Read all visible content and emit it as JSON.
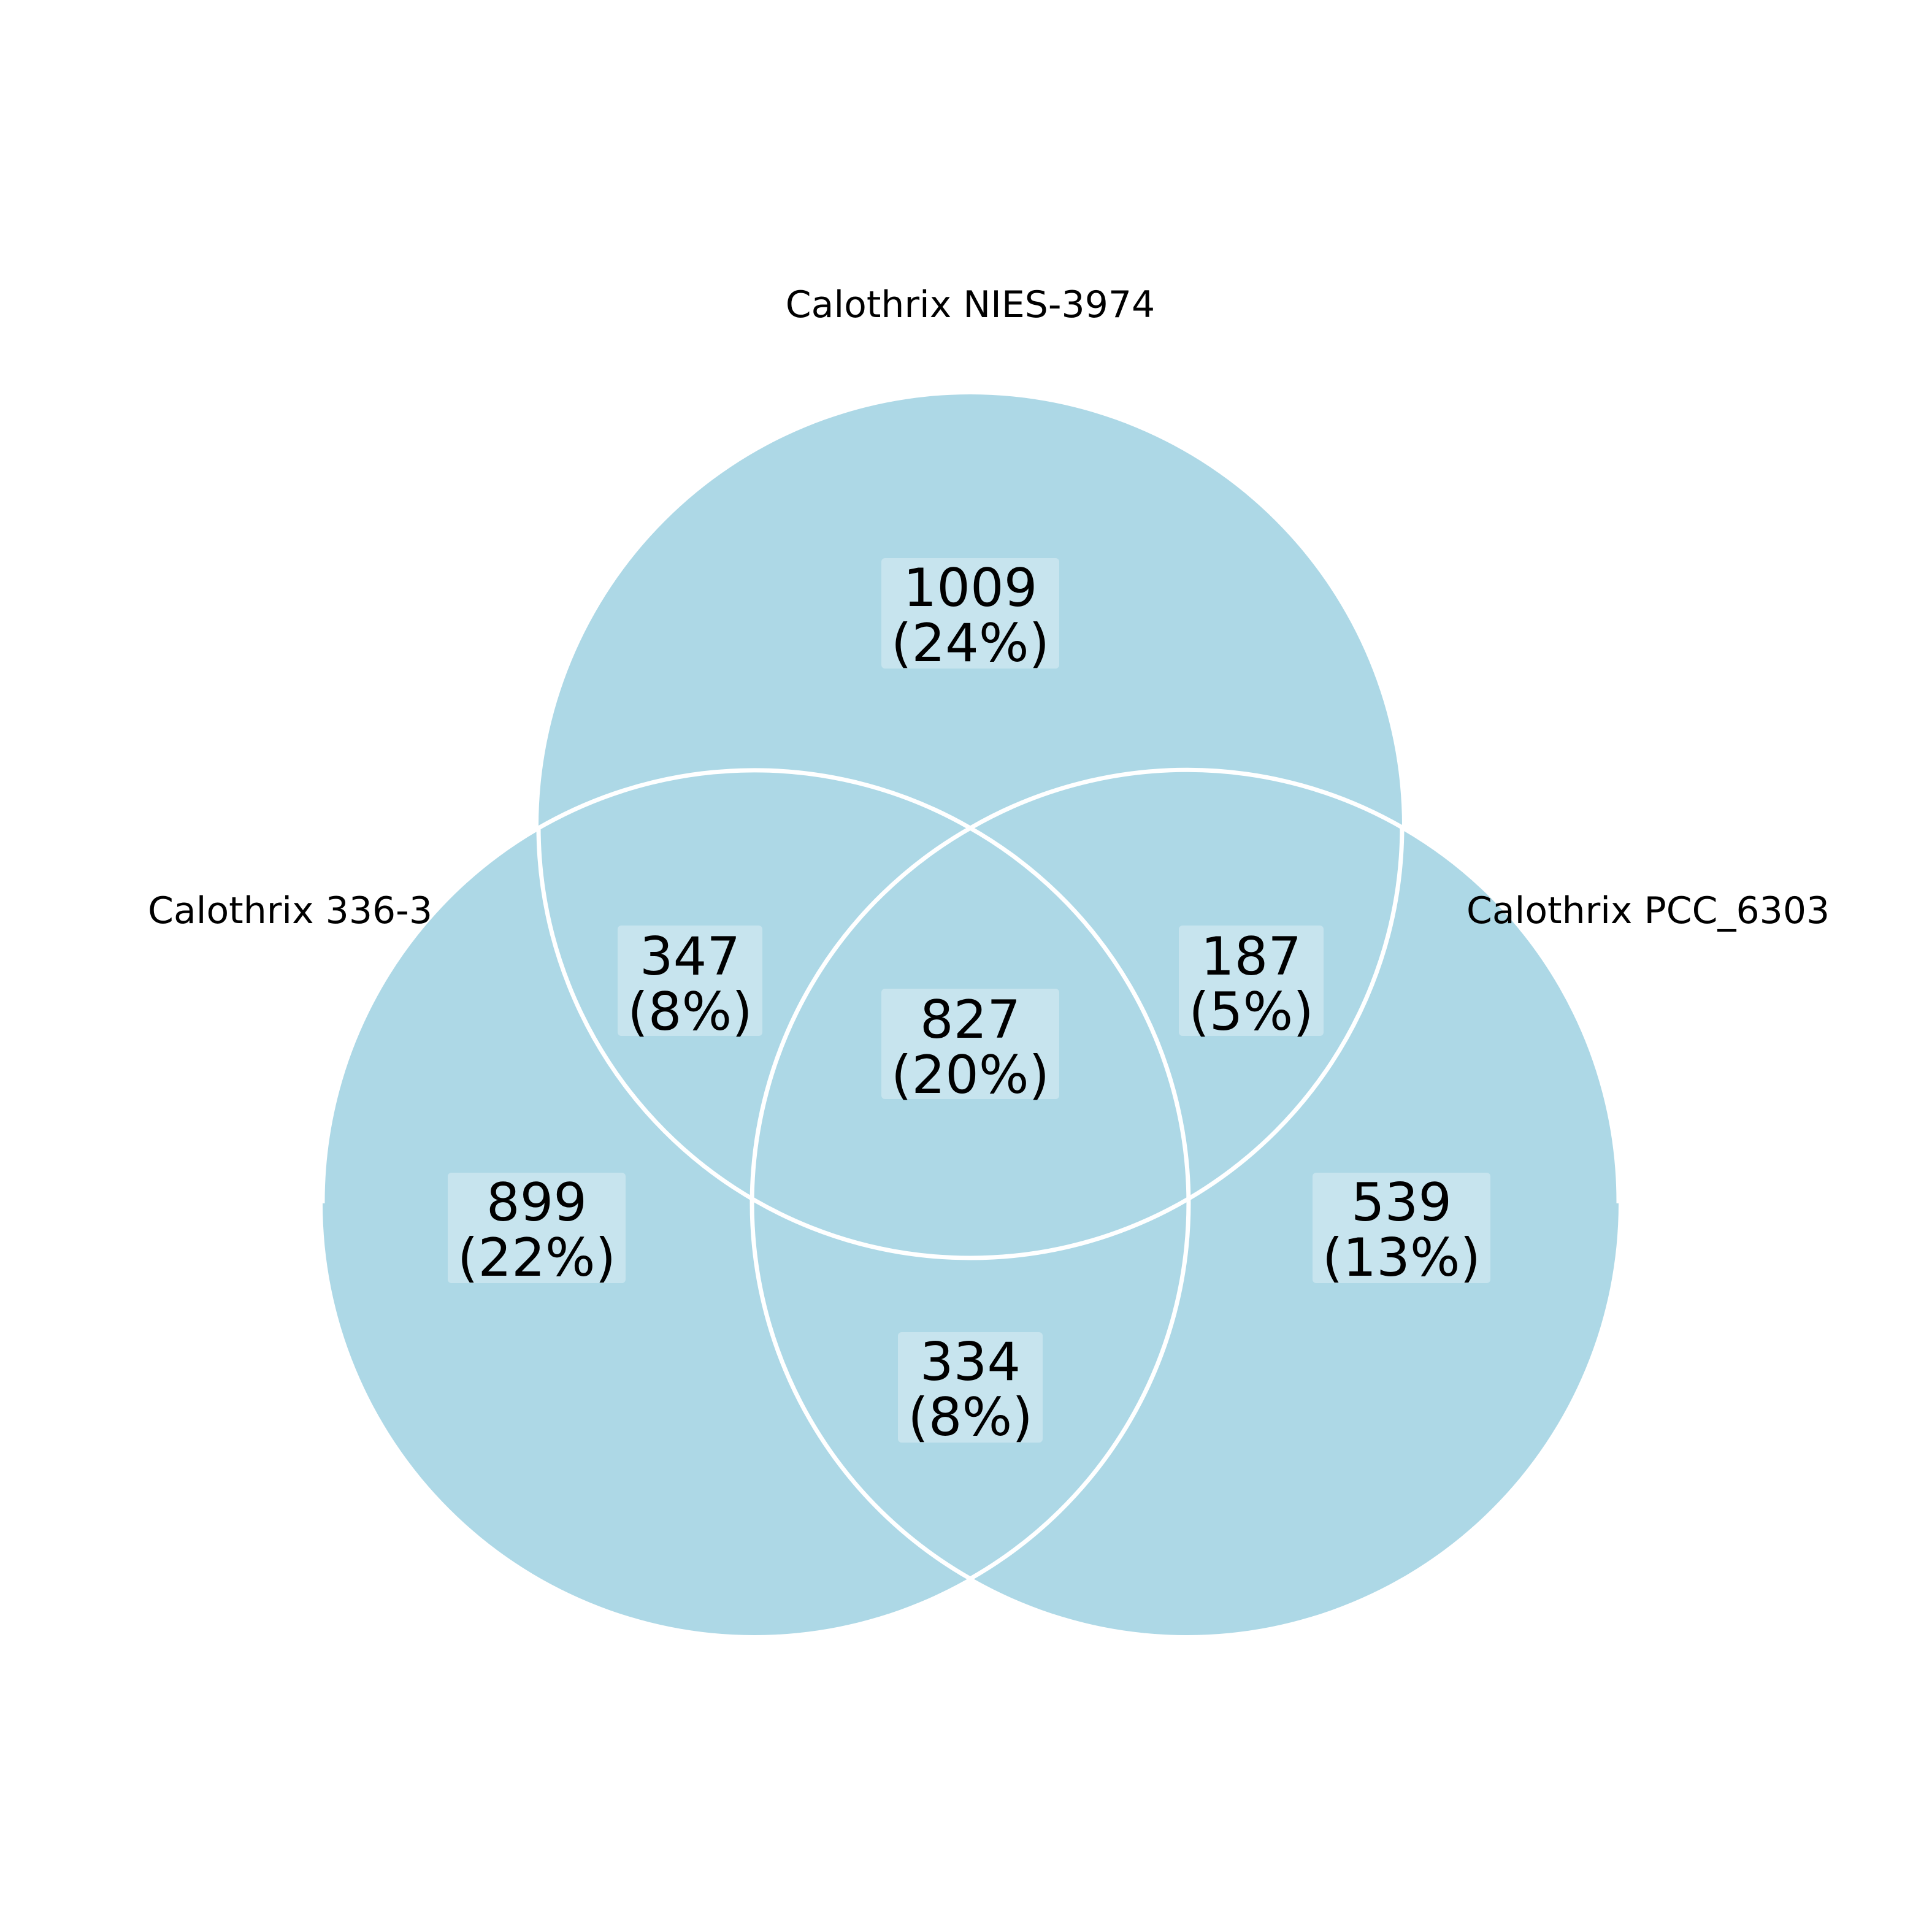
{
  "colors": {
    "circle_fill": "#add8e6",
    "circle_stroke": "#ffffff",
    "label_box": "#c7e4ee",
    "text": "#000000"
  },
  "sets": {
    "top": "Calothrix NIES-3974",
    "left": "Calothrix 336-3",
    "right": "Calothrix PCC_6303"
  },
  "regions": {
    "top_only": {
      "count": "1009",
      "pct": "(24%)"
    },
    "left_top": {
      "count": "347",
      "pct": "(8%)"
    },
    "center": {
      "count": "827",
      "pct": "(20%)"
    },
    "right_top": {
      "count": "187",
      "pct": "(5%)"
    },
    "left_only": {
      "count": "899",
      "pct": "(22%)"
    },
    "right_only": {
      "count": "539",
      "pct": "(13%)"
    },
    "left_right": {
      "count": "334",
      "pct": "(8%)"
    }
  }
}
